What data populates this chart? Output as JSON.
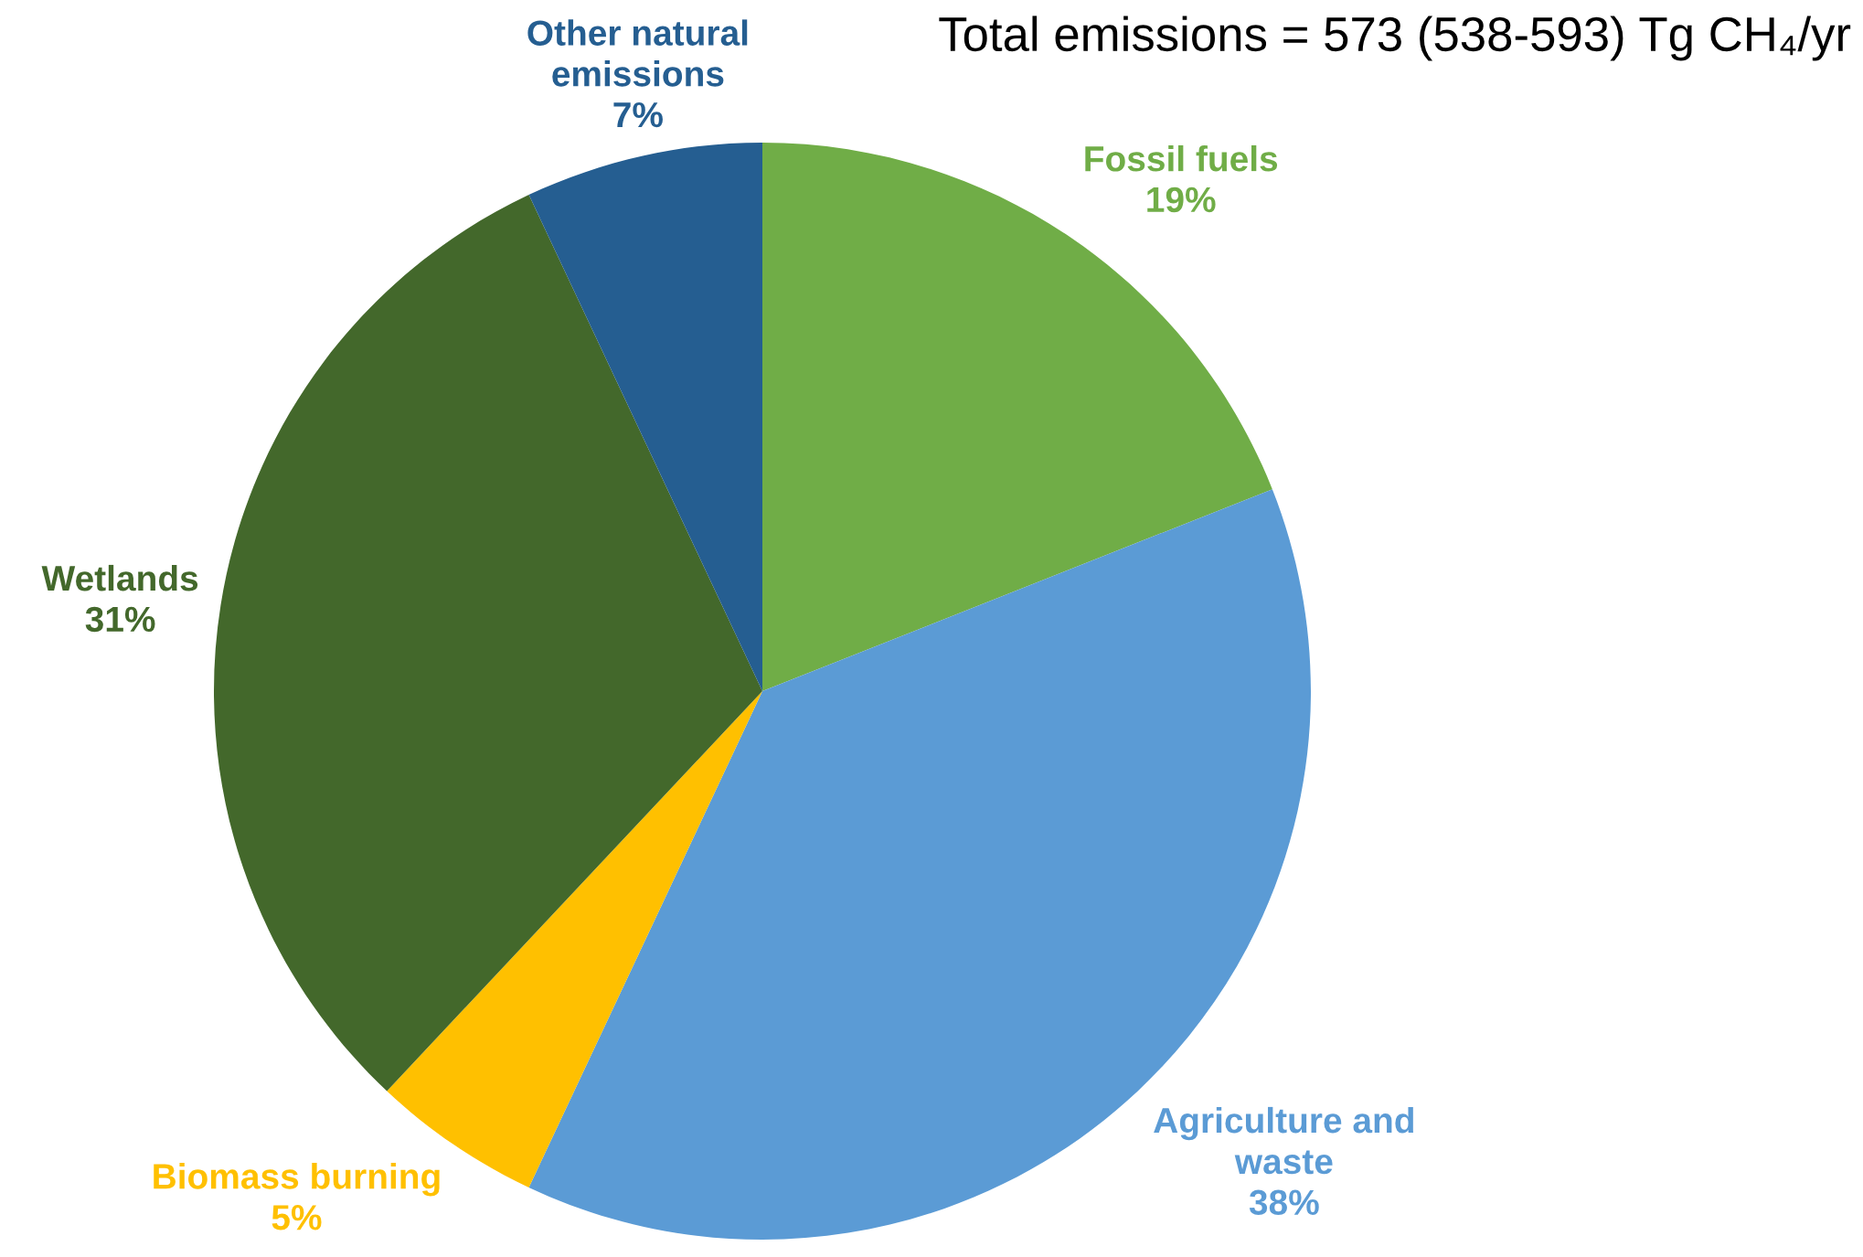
{
  "chart_data": {
    "type": "pie",
    "title": "Total emissions = 573 (538-593) Tg CH₄/yr",
    "categories": [
      "Fossil fuels",
      "Agriculture and waste",
      "Biomass burning",
      "Wetlands",
      "Other natural emissions"
    ],
    "values": [
      19,
      38,
      5,
      31,
      7
    ],
    "value_labels": [
      "19%",
      "38%",
      "5%",
      "31%",
      "7%"
    ],
    "colors": [
      "#70ad47",
      "#5b9bd5",
      "#ffc000",
      "#43682b",
      "#255e91"
    ]
  }
}
